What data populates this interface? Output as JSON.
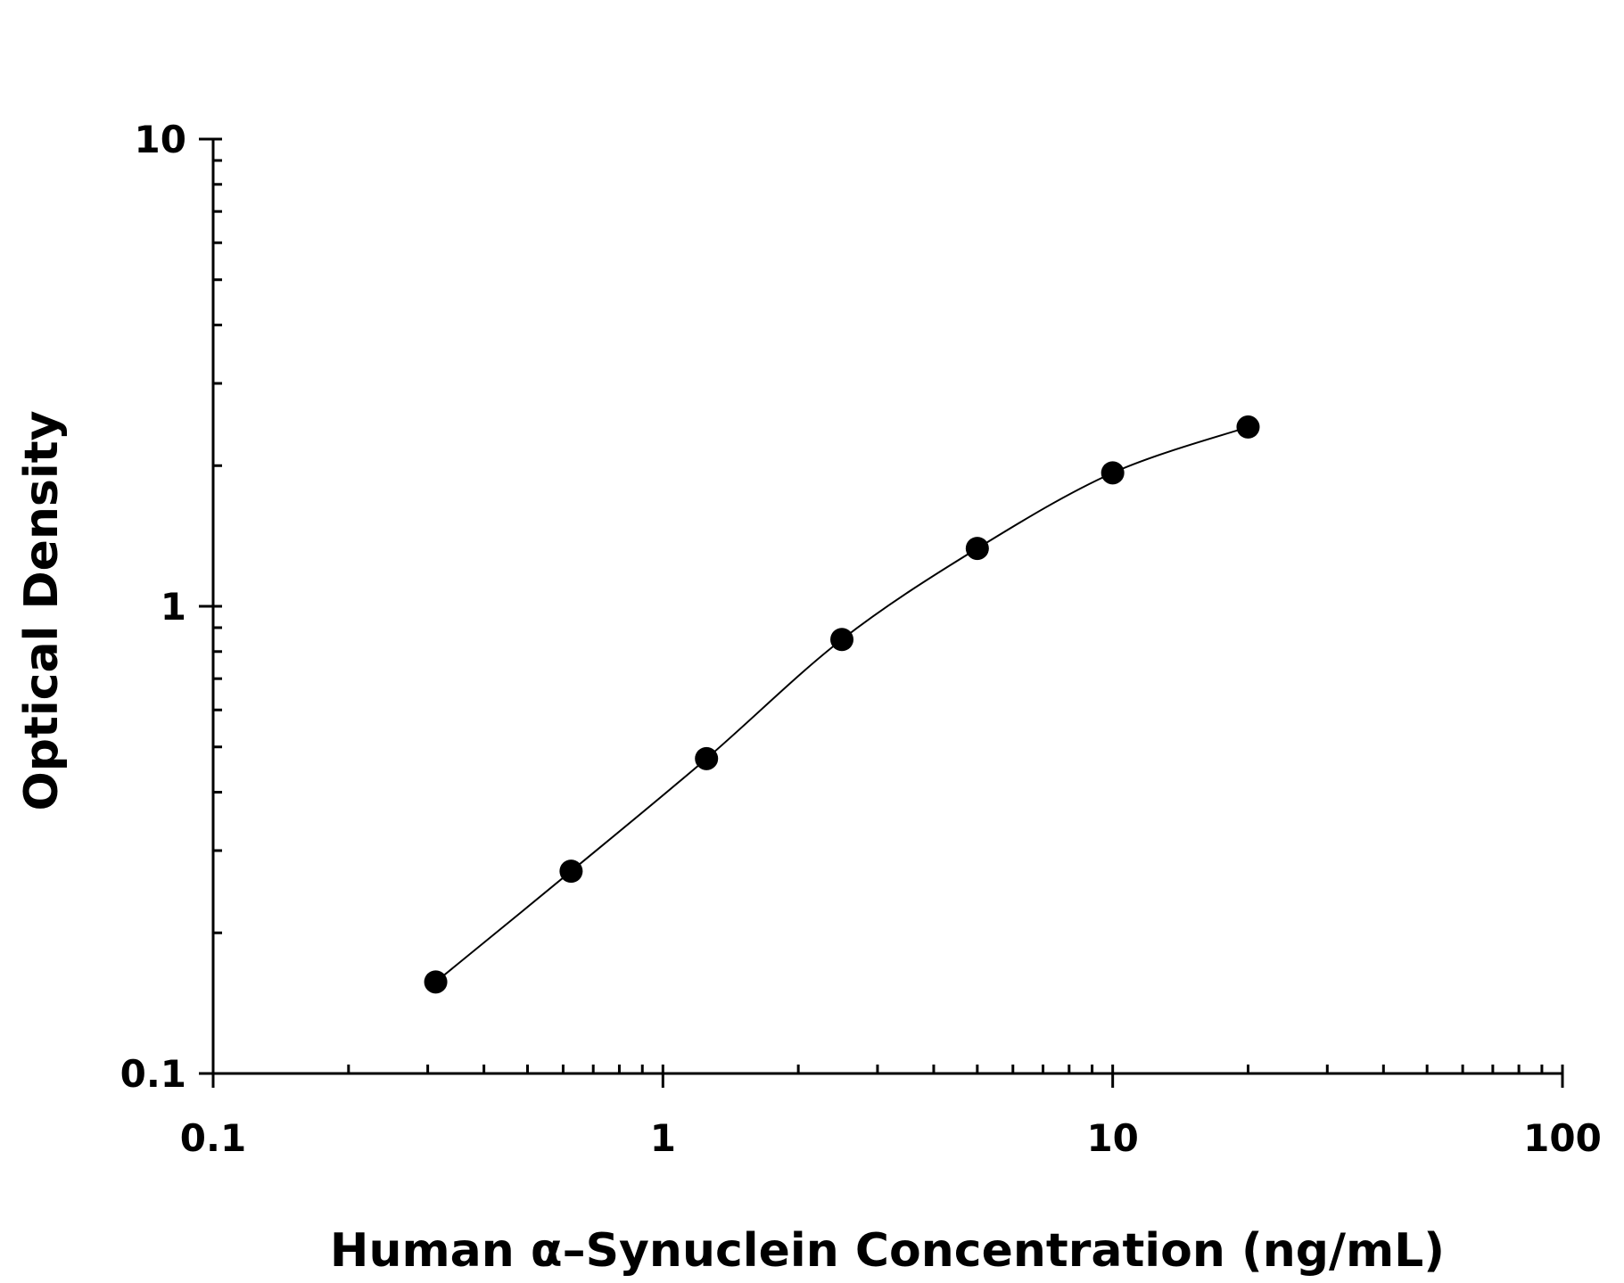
{
  "chart_data": {
    "type": "scatter",
    "title": "",
    "xlabel": "Human α–Synuclein Concentration (ng/mL)",
    "ylabel": "Optical Density",
    "x_scale": "log",
    "y_scale": "log",
    "xlim": [
      0.1,
      100
    ],
    "ylim": [
      0.1,
      10
    ],
    "x_ticks": [
      "0.1",
      "1",
      "10",
      "100"
    ],
    "y_ticks": [
      "0.1",
      "1",
      "10"
    ],
    "grid": false,
    "fit_curve": true,
    "marker_color": "#000000",
    "x": [
      0.3125,
      0.625,
      1.25,
      2.5,
      5,
      10,
      20
    ],
    "y": [
      0.157,
      0.271,
      0.472,
      0.849,
      1.33,
      1.93,
      2.42
    ]
  }
}
